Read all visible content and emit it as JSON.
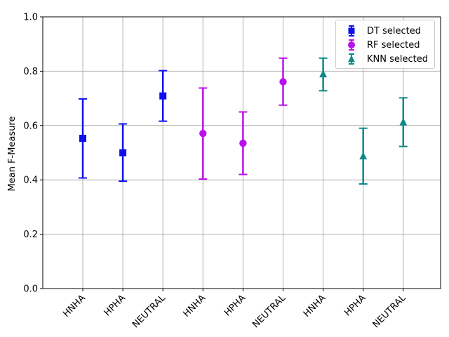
{
  "chart_data": {
    "type": "scatter",
    "title": "",
    "xlabel": "",
    "ylabel": "Mean  F-Measure",
    "ylim": [
      0,
      1.0
    ],
    "yticks": [
      "0.0",
      "0.2",
      "0.4",
      "0.6",
      "0.8",
      "1.0"
    ],
    "grid": true,
    "legend_position": "top-right",
    "categories": [
      "HNHA",
      "HPHA",
      "NEUTRAL",
      "HNHA",
      "HPHA",
      "NEUTRAL",
      "HNHA",
      "HPHA",
      "NEUTRAL"
    ],
    "series": [
      {
        "name": "DT selected",
        "marker": "square",
        "color": "#1010ee",
        "x_index": [
          0,
          1,
          2
        ],
        "values": [
          0.553,
          0.5,
          0.709
        ],
        "error_low": [
          0.407,
          0.395,
          0.616
        ],
        "error_high": [
          0.698,
          0.606,
          0.802
        ]
      },
      {
        "name": "RF selected",
        "marker": "circle",
        "color": "#bb10ee",
        "x_index": [
          3,
          4,
          5
        ],
        "values": [
          0.571,
          0.535,
          0.761
        ],
        "error_low": [
          0.403,
          0.42,
          0.675
        ],
        "error_high": [
          0.738,
          0.65,
          0.848
        ]
      },
      {
        "name": "KNN selected",
        "marker": "triangle",
        "color": "#108888",
        "x_index": [
          6,
          7,
          8
        ],
        "values": [
          0.789,
          0.487,
          0.612
        ],
        "error_low": [
          0.728,
          0.385,
          0.523
        ],
        "error_high": [
          0.848,
          0.59,
          0.702
        ]
      }
    ]
  }
}
